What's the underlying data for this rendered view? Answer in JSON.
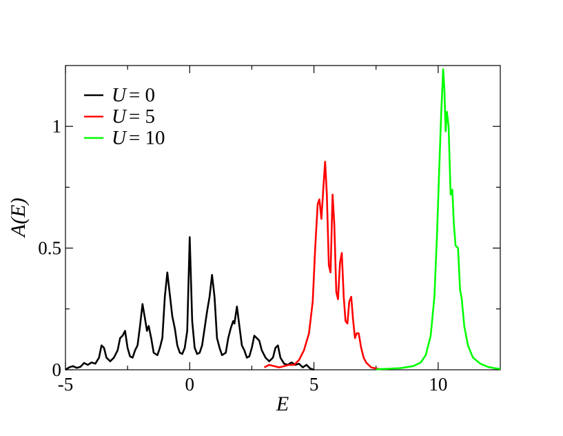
{
  "chart_data": {
    "type": "line",
    "title": "",
    "xlabel": "E",
    "ylabel": "A(E)",
    "xlim": [
      -5,
      12.5
    ],
    "ylim": [
      0,
      1.25
    ],
    "x_ticks": [
      -5,
      0,
      5,
      10
    ],
    "x_tick_labels": [
      "-5",
      "0",
      "5",
      "10"
    ],
    "y_ticks": [
      0,
      0.5,
      1
    ],
    "y_tick_labels": [
      "0",
      "0.5",
      "1"
    ],
    "grid": false,
    "legend_position": "top-left",
    "series": [
      {
        "name": "U = 0",
        "legend_var": "U",
        "legend_eq": "= 0",
        "color": "#000000",
        "points": [
          [
            -5.0,
            0.0
          ],
          [
            -4.85,
            0.01
          ],
          [
            -4.7,
            0.015
          ],
          [
            -4.55,
            0.008
          ],
          [
            -4.4,
            0.012
          ],
          [
            -4.25,
            0.028
          ],
          [
            -4.1,
            0.02
          ],
          [
            -3.95,
            0.03
          ],
          [
            -3.8,
            0.025
          ],
          [
            -3.65,
            0.05
          ],
          [
            -3.55,
            0.1
          ],
          [
            -3.45,
            0.09
          ],
          [
            -3.35,
            0.05
          ],
          [
            -3.2,
            0.035
          ],
          [
            -3.05,
            0.05
          ],
          [
            -2.9,
            0.08
          ],
          [
            -2.8,
            0.13
          ],
          [
            -2.7,
            0.14
          ],
          [
            -2.6,
            0.16
          ],
          [
            -2.5,
            0.09
          ],
          [
            -2.4,
            0.055
          ],
          [
            -2.3,
            0.05
          ],
          [
            -2.2,
            0.08
          ],
          [
            -2.1,
            0.1
          ],
          [
            -2.0,
            0.18
          ],
          [
            -1.9,
            0.27
          ],
          [
            -1.8,
            0.21
          ],
          [
            -1.72,
            0.16
          ],
          [
            -1.65,
            0.18
          ],
          [
            -1.55,
            0.13
          ],
          [
            -1.45,
            0.07
          ],
          [
            -1.3,
            0.06
          ],
          [
            -1.2,
            0.09
          ],
          [
            -1.1,
            0.13
          ],
          [
            -1.0,
            0.3
          ],
          [
            -0.9,
            0.4
          ],
          [
            -0.8,
            0.31
          ],
          [
            -0.7,
            0.22
          ],
          [
            -0.6,
            0.17
          ],
          [
            -0.5,
            0.1
          ],
          [
            -0.4,
            0.07
          ],
          [
            -0.3,
            0.065
          ],
          [
            -0.2,
            0.09
          ],
          [
            -0.1,
            0.16
          ],
          [
            0.0,
            0.545
          ],
          [
            0.1,
            0.2
          ],
          [
            0.2,
            0.09
          ],
          [
            0.3,
            0.065
          ],
          [
            0.4,
            0.07
          ],
          [
            0.5,
            0.1
          ],
          [
            0.6,
            0.17
          ],
          [
            0.7,
            0.24
          ],
          [
            0.8,
            0.3
          ],
          [
            0.9,
            0.39
          ],
          [
            1.0,
            0.3
          ],
          [
            1.1,
            0.13
          ],
          [
            1.2,
            0.09
          ],
          [
            1.3,
            0.06
          ],
          [
            1.45,
            0.07
          ],
          [
            1.55,
            0.13
          ],
          [
            1.65,
            0.17
          ],
          [
            1.75,
            0.2
          ],
          [
            1.8,
            0.19
          ],
          [
            1.9,
            0.26
          ],
          [
            2.0,
            0.18
          ],
          [
            2.1,
            0.1
          ],
          [
            2.2,
            0.08
          ],
          [
            2.3,
            0.05
          ],
          [
            2.4,
            0.055
          ],
          [
            2.5,
            0.09
          ],
          [
            2.6,
            0.14
          ],
          [
            2.7,
            0.13
          ],
          [
            2.8,
            0.12
          ],
          [
            2.9,
            0.08
          ],
          [
            3.05,
            0.05
          ],
          [
            3.2,
            0.035
          ],
          [
            3.35,
            0.05
          ],
          [
            3.45,
            0.09
          ],
          [
            3.55,
            0.1
          ],
          [
            3.65,
            0.05
          ],
          [
            3.8,
            0.025
          ],
          [
            3.95,
            0.02
          ],
          [
            4.1,
            0.03
          ],
          [
            4.25,
            0.02
          ],
          [
            4.4,
            0.025
          ],
          [
            4.55,
            0.01
          ],
          [
            4.7,
            0.02
          ],
          [
            4.85,
            0.005
          ],
          [
            5.0,
            0.0
          ]
        ]
      },
      {
        "name": "U = 5",
        "legend_var": "U",
        "legend_eq": "= 5",
        "color": "#ff0000",
        "points": [
          [
            3.0,
            0.01
          ],
          [
            3.2,
            0.02
          ],
          [
            3.4,
            0.015
          ],
          [
            3.6,
            0.01
          ],
          [
            3.8,
            0.015
          ],
          [
            4.0,
            0.02
          ],
          [
            4.2,
            0.02
          ],
          [
            4.4,
            0.04
          ],
          [
            4.6,
            0.08
          ],
          [
            4.8,
            0.15
          ],
          [
            4.95,
            0.28
          ],
          [
            5.05,
            0.5
          ],
          [
            5.15,
            0.68
          ],
          [
            5.22,
            0.7
          ],
          [
            5.3,
            0.62
          ],
          [
            5.38,
            0.75
          ],
          [
            5.45,
            0.855
          ],
          [
            5.52,
            0.72
          ],
          [
            5.6,
            0.43
          ],
          [
            5.67,
            0.4
          ],
          [
            5.75,
            0.72
          ],
          [
            5.82,
            0.6
          ],
          [
            5.9,
            0.32
          ],
          [
            5.97,
            0.29
          ],
          [
            6.05,
            0.44
          ],
          [
            6.12,
            0.48
          ],
          [
            6.2,
            0.3
          ],
          [
            6.27,
            0.2
          ],
          [
            6.35,
            0.19
          ],
          [
            6.42,
            0.28
          ],
          [
            6.5,
            0.3
          ],
          [
            6.57,
            0.21
          ],
          [
            6.65,
            0.13
          ],
          [
            6.72,
            0.15
          ],
          [
            6.8,
            0.15
          ],
          [
            6.9,
            0.09
          ],
          [
            7.0,
            0.05
          ],
          [
            7.1,
            0.03
          ],
          [
            7.3,
            0.01
          ],
          [
            7.5,
            0.005
          ],
          [
            7.7,
            0.002
          ]
        ]
      },
      {
        "name": "U = 10",
        "legend_var": "U",
        "legend_eq": "= 10",
        "color": "#00ff00",
        "points": [
          [
            7.5,
            0.002
          ],
          [
            8.0,
            0.004
          ],
          [
            8.5,
            0.007
          ],
          [
            9.0,
            0.015
          ],
          [
            9.3,
            0.03
          ],
          [
            9.5,
            0.06
          ],
          [
            9.7,
            0.14
          ],
          [
            9.85,
            0.3
          ],
          [
            9.95,
            0.55
          ],
          [
            10.05,
            0.85
          ],
          [
            10.12,
            1.05
          ],
          [
            10.2,
            1.235
          ],
          [
            10.25,
            1.15
          ],
          [
            10.3,
            0.98
          ],
          [
            10.35,
            1.06
          ],
          [
            10.42,
            1.0
          ],
          [
            10.5,
            0.72
          ],
          [
            10.57,
            0.74
          ],
          [
            10.63,
            0.6
          ],
          [
            10.7,
            0.51
          ],
          [
            10.8,
            0.5
          ],
          [
            10.88,
            0.33
          ],
          [
            10.95,
            0.29
          ],
          [
            11.05,
            0.18
          ],
          [
            11.2,
            0.1
          ],
          [
            11.4,
            0.05
          ],
          [
            11.7,
            0.025
          ],
          [
            12.0,
            0.012
          ],
          [
            12.3,
            0.006
          ],
          [
            12.5,
            0.004
          ]
        ]
      }
    ]
  }
}
